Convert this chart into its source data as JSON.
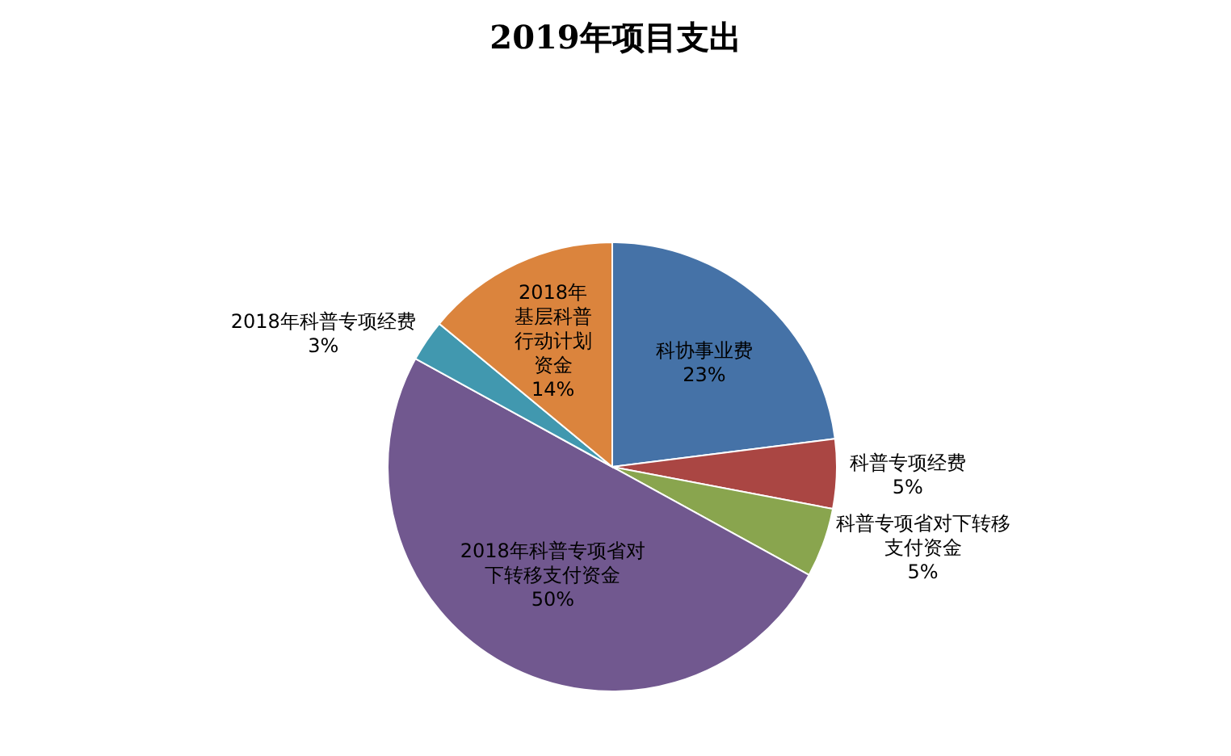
{
  "chart_data": {
    "type": "pie",
    "title": "2019年项目支出",
    "categories": [
      "科协事业费",
      "科普专项经费",
      "科普专项省对下转移支付资金",
      "2018年科普专项省对下转移支付资金",
      "2018年科普专项经费",
      "2018年基层科普行动计划资金"
    ],
    "values": [
      23,
      5,
      5,
      50,
      3,
      14
    ],
    "value_labels": [
      "23%",
      "5%",
      "5%",
      "50%",
      "3%",
      "14%"
    ],
    "colors": [
      "#4572a7",
      "#aa4643",
      "#89a54e",
      "#71588f",
      "#4198af",
      "#db843d"
    ],
    "legend": false
  }
}
